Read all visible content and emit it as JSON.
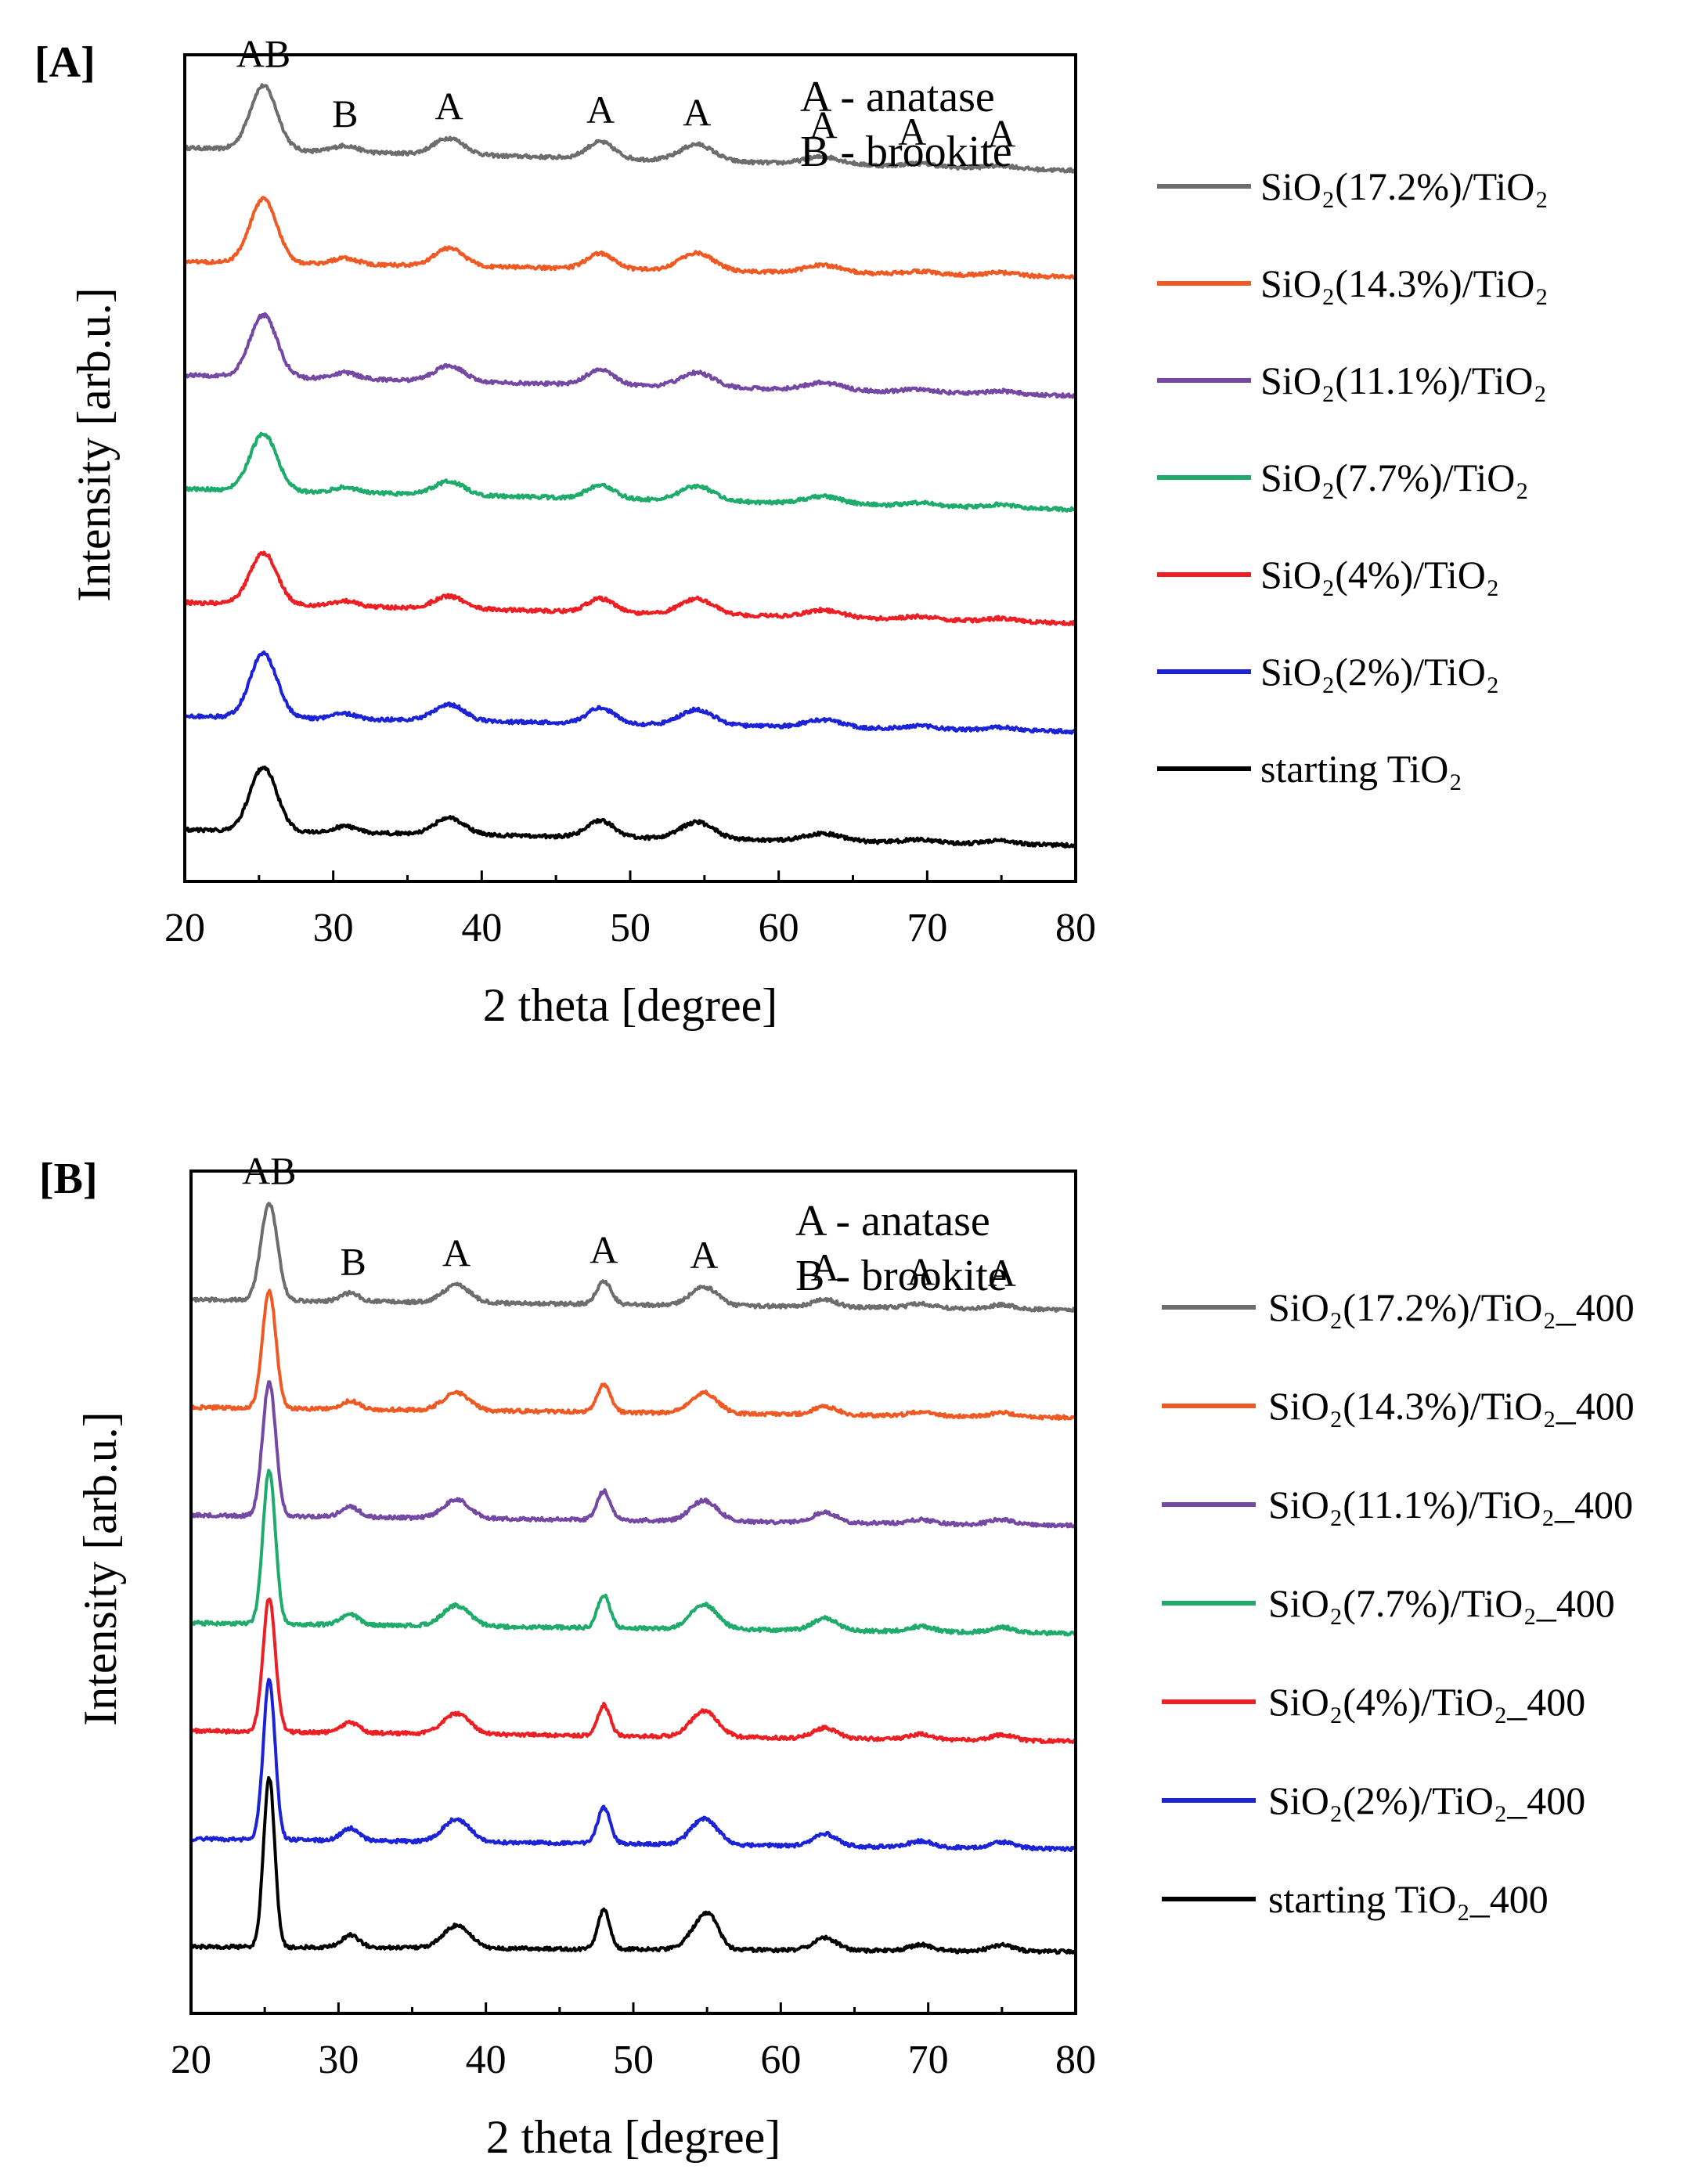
{
  "chart_data": [
    {
      "type": "line",
      "panel_label": "[A]",
      "xlabel": "2 theta [degree]",
      "ylabel": "Intensity [arb.u.]",
      "xlim": [
        20,
        80
      ],
      "xticks": [
        20,
        30,
        40,
        50,
        60,
        70,
        80
      ],
      "yticks_shown": false,
      "key_lines": [
        "A - anatase",
        "B - brookite"
      ],
      "peak_labels": [
        {
          "text": "AB",
          "x": 25.3
        },
        {
          "text": "B",
          "x": 30.8
        },
        {
          "text": "A",
          "x": 37.8
        },
        {
          "text": "A",
          "x": 48.0
        },
        {
          "text": "A",
          "x": 54.5
        },
        {
          "text": "A",
          "x": 63.0
        },
        {
          "text": "A",
          "x": 69.0
        },
        {
          "text": "A",
          "x": 75.0
        }
      ],
      "legend_position": "right",
      "series": [
        {
          "name": "SiO₂(17.2%)/TiO₂",
          "color": "#6d6d6d",
          "baseline": 7.1,
          "drift": -0.22,
          "peaks": [
            [
              25.3,
              0.62,
              0.9
            ],
            [
              30.8,
              0.06,
              0.8
            ],
            [
              37.8,
              0.16,
              1.0
            ],
            [
              48.0,
              0.16,
              0.9
            ],
            [
              54.5,
              0.16,
              1.1
            ],
            [
              63.0,
              0.07,
              1.2
            ],
            [
              69.5,
              0.03,
              1.0
            ],
            [
              75.0,
              0.03,
              1.0
            ]
          ]
        },
        {
          "name": "SiO₂(14.3%)/TiO₂",
          "color": "#ef5a24",
          "baseline": 6.0,
          "drift": -0.15,
          "peaks": [
            [
              25.3,
              0.62,
              0.9
            ],
            [
              30.8,
              0.06,
              0.8
            ],
            [
              37.8,
              0.17,
              1.0
            ],
            [
              48.0,
              0.15,
              0.9
            ],
            [
              54.5,
              0.17,
              1.1
            ],
            [
              63.0,
              0.07,
              1.2
            ],
            [
              69.5,
              0.03,
              1.0
            ],
            [
              75.0,
              0.03,
              1.0
            ]
          ]
        },
        {
          "name": "SiO₂(11.1%)/TiO₂",
          "color": "#7448a3",
          "baseline": 4.9,
          "drift": -0.2,
          "peaks": [
            [
              25.3,
              0.6,
              0.9
            ],
            [
              30.8,
              0.06,
              0.8
            ],
            [
              37.8,
              0.15,
              1.0
            ],
            [
              48.0,
              0.15,
              0.9
            ],
            [
              54.5,
              0.14,
              1.1
            ],
            [
              63.0,
              0.07,
              1.2
            ],
            [
              69.5,
              0.03,
              1.0
            ],
            [
              75.0,
              0.03,
              1.0
            ]
          ]
        },
        {
          "name": "SiO₂(7.7%)/TiO₂",
          "color": "#1fab6b",
          "baseline": 3.8,
          "drift": -0.2,
          "peaks": [
            [
              25.3,
              0.55,
              0.9
            ],
            [
              30.8,
              0.05,
              0.8
            ],
            [
              37.8,
              0.13,
              1.0
            ],
            [
              48.0,
              0.13,
              0.9
            ],
            [
              54.5,
              0.14,
              1.1
            ],
            [
              63.0,
              0.07,
              1.2
            ],
            [
              69.5,
              0.03,
              1.0
            ],
            [
              75.0,
              0.03,
              1.0
            ]
          ]
        },
        {
          "name": "SiO₂(4%)/TiO₂",
          "color": "#ec2024",
          "baseline": 2.7,
          "drift": -0.2,
          "peaks": [
            [
              25.3,
              0.5,
              0.9
            ],
            [
              30.8,
              0.05,
              0.8
            ],
            [
              37.8,
              0.12,
              1.0
            ],
            [
              48.0,
              0.13,
              0.9
            ],
            [
              54.5,
              0.15,
              1.1
            ],
            [
              63.0,
              0.07,
              1.2
            ],
            [
              69.5,
              0.03,
              1.0
            ],
            [
              75.0,
              0.03,
              1.0
            ]
          ]
        },
        {
          "name": "SiO₂(2%)/TiO₂",
          "color": "#1c22d6",
          "baseline": 1.6,
          "drift": -0.15,
          "peaks": [
            [
              25.3,
              0.62,
              0.9
            ],
            [
              30.8,
              0.05,
              0.8
            ],
            [
              37.8,
              0.16,
              1.0
            ],
            [
              48.0,
              0.15,
              0.9
            ],
            [
              54.5,
              0.15,
              1.1
            ],
            [
              63.0,
              0.07,
              1.2
            ],
            [
              69.5,
              0.03,
              1.0
            ],
            [
              75.0,
              0.03,
              1.0
            ]
          ]
        },
        {
          "name": "starting TiO₂",
          "color": "#000000",
          "baseline": 0.5,
          "drift": -0.15,
          "peaks": [
            [
              25.3,
              0.62,
              0.9
            ],
            [
              30.8,
              0.06,
              0.8
            ],
            [
              37.8,
              0.16,
              1.0
            ],
            [
              48.0,
              0.16,
              0.9
            ],
            [
              54.5,
              0.16,
              1.1
            ],
            [
              63.0,
              0.07,
              1.2
            ],
            [
              69.5,
              0.03,
              1.0
            ],
            [
              75.0,
              0.03,
              1.0
            ]
          ]
        }
      ]
    },
    {
      "type": "line",
      "panel_label": "[B]",
      "xlabel": "2 theta [degree]",
      "ylabel": "Intensity [arb.u.]",
      "xlim": [
        20,
        80
      ],
      "xticks": [
        20,
        30,
        40,
        50,
        60,
        70,
        80
      ],
      "yticks_shown": false,
      "key_lines": [
        "A - anatase",
        "B - brookite"
      ],
      "peak_labels": [
        {
          "text": "AB",
          "x": 25.3
        },
        {
          "text": "B",
          "x": 31.0
        },
        {
          "text": "A",
          "x": 38.0
        },
        {
          "text": "A",
          "x": 48.0
        },
        {
          "text": "A",
          "x": 54.8
        },
        {
          "text": "A",
          "x": 63.0
        },
        {
          "text": "A",
          "x": 69.5
        },
        {
          "text": "A",
          "x": 75.0
        }
      ],
      "legend_position": "right",
      "series": [
        {
          "name": "SiO₂(17.2%)/TiO₂_400",
          "color": "#6d6d6d",
          "baseline": 6.95,
          "drift": -0.1,
          "peaks": [
            [
              25.3,
              0.95,
              0.55
            ],
            [
              30.8,
              0.08,
              0.6
            ],
            [
              38.0,
              0.17,
              0.9
            ],
            [
              48.0,
              0.22,
              0.5
            ],
            [
              54.8,
              0.18,
              0.9
            ],
            [
              63.0,
              0.07,
              0.8
            ],
            [
              69.5,
              0.04,
              0.8
            ],
            [
              75.0,
              0.04,
              0.8
            ]
          ]
        },
        {
          "name": "SiO₂(14.3%)/TiO₂_400",
          "color": "#ef5a24",
          "baseline": 5.9,
          "drift": -0.1,
          "peaks": [
            [
              25.3,
              1.15,
              0.45
            ],
            [
              30.8,
              0.08,
              0.6
            ],
            [
              38.0,
              0.17,
              0.9
            ],
            [
              48.0,
              0.27,
              0.45
            ],
            [
              54.8,
              0.2,
              0.9
            ],
            [
              63.0,
              0.08,
              0.8
            ],
            [
              69.5,
              0.04,
              0.8
            ],
            [
              75.0,
              0.04,
              0.8
            ]
          ]
        },
        {
          "name": "SiO₂(11.1%)/TiO₂_400",
          "color": "#7448a3",
          "baseline": 4.85,
          "drift": -0.1,
          "peaks": [
            [
              25.3,
              1.3,
              0.45
            ],
            [
              30.8,
              0.1,
              0.6
            ],
            [
              38.0,
              0.18,
              0.9
            ],
            [
              48.0,
              0.28,
              0.45
            ],
            [
              54.8,
              0.2,
              0.9
            ],
            [
              63.0,
              0.1,
              0.8
            ],
            [
              69.5,
              0.04,
              0.8
            ],
            [
              75.0,
              0.05,
              0.8
            ]
          ]
        },
        {
          "name": "SiO₂(7.7%)/TiO₂_400",
          "color": "#1fab6b",
          "baseline": 3.8,
          "drift": -0.1,
          "peaks": [
            [
              25.3,
              1.5,
              0.42
            ],
            [
              30.8,
              0.1,
              0.6
            ],
            [
              38.0,
              0.2,
              0.9
            ],
            [
              48.0,
              0.32,
              0.42
            ],
            [
              54.8,
              0.24,
              0.9
            ],
            [
              63.0,
              0.12,
              0.8
            ],
            [
              69.5,
              0.05,
              0.8
            ],
            [
              75.0,
              0.05,
              0.8
            ]
          ]
        },
        {
          "name": "SiO₂(4%)/TiO₂_400",
          "color": "#ec2024",
          "baseline": 2.75,
          "drift": -0.1,
          "peaks": [
            [
              25.3,
              1.3,
              0.42
            ],
            [
              30.8,
              0.1,
              0.6
            ],
            [
              38.0,
              0.2,
              0.9
            ],
            [
              48.0,
              0.3,
              0.42
            ],
            [
              54.8,
              0.25,
              0.9
            ],
            [
              63.0,
              0.1,
              0.8
            ],
            [
              69.5,
              0.05,
              0.8
            ],
            [
              75.0,
              0.05,
              0.8
            ]
          ]
        },
        {
          "name": "SiO₂(2%)/TiO₂_400",
          "color": "#1c22d6",
          "baseline": 1.7,
          "drift": -0.1,
          "peaks": [
            [
              25.3,
              1.55,
              0.4
            ],
            [
              30.8,
              0.12,
              0.6
            ],
            [
              38.0,
              0.22,
              0.9
            ],
            [
              48.0,
              0.35,
              0.42
            ],
            [
              54.8,
              0.25,
              0.9
            ],
            [
              63.0,
              0.12,
              0.8
            ],
            [
              69.5,
              0.06,
              0.8
            ],
            [
              75.0,
              0.06,
              0.8
            ]
          ]
        },
        {
          "name": "starting TiO₂_400",
          "color": "#000000",
          "baseline": 0.65,
          "drift": -0.05,
          "peaks": [
            [
              25.3,
              1.65,
              0.38
            ],
            [
              30.8,
              0.12,
              0.6
            ],
            [
              38.0,
              0.22,
              0.9
            ],
            [
              48.0,
              0.38,
              0.4
            ],
            [
              54.5,
              0.22,
              0.8
            ],
            [
              55.3,
              0.2,
              0.6
            ],
            [
              63.0,
              0.12,
              0.8
            ],
            [
              69.5,
              0.06,
              0.8
            ],
            [
              75.0,
              0.06,
              0.8
            ]
          ]
        }
      ]
    }
  ]
}
